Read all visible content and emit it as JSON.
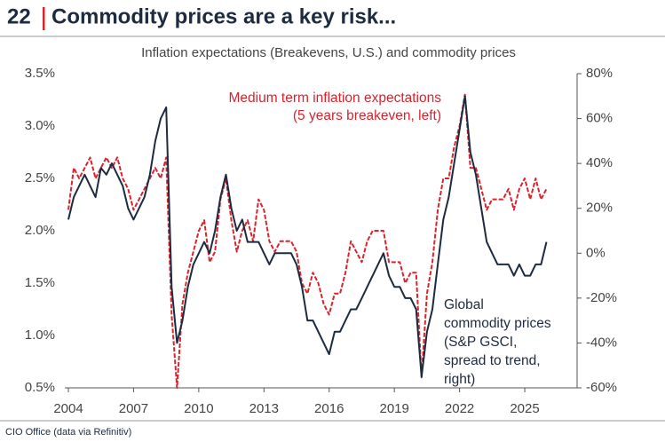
{
  "chart_data": {
    "type": "line",
    "number": "22",
    "title": "Commodity prices are a key risk...",
    "subtitle": "Inflation expectations (Breakevens, U.S.) and commodity prices",
    "source": "CIO Office (data via Refinitiv)",
    "annotations": [
      {
        "lines": [
          "Medium term inflation expectations",
          "(5 years breakeven, left)"
        ],
        "color": "#d9232d"
      },
      {
        "lines": [
          "Global",
          "commodity prices",
          "(S&P GSCI,",
          "spread to trend,",
          "right)"
        ],
        "color": "#1c2b3f"
      }
    ],
    "x": [
      2004,
      2004.25,
      2004.5,
      2004.75,
      2005,
      2005.25,
      2005.5,
      2005.75,
      2006,
      2006.25,
      2006.5,
      2006.75,
      2007,
      2007.25,
      2007.5,
      2007.75,
      2008,
      2008.25,
      2008.5,
      2008.75,
      2009,
      2009.25,
      2009.5,
      2009.75,
      2010,
      2010.25,
      2010.5,
      2010.75,
      2011,
      2011.25,
      2011.5,
      2011.75,
      2012,
      2012.25,
      2012.5,
      2012.75,
      2013,
      2013.25,
      2013.5,
      2013.75,
      2014,
      2014.25,
      2014.5,
      2014.75,
      2015,
      2015.25,
      2015.5,
      2015.75,
      2016,
      2016.25,
      2016.5,
      2016.75,
      2017,
      2017.25,
      2017.5,
      2017.75,
      2018,
      2018.25,
      2018.5,
      2018.75,
      2019,
      2019.25,
      2019.5,
      2019.75,
      2020,
      2020.25,
      2020.5,
      2020.75,
      2021,
      2021.25,
      2021.5,
      2021.75,
      2022,
      2022.25,
      2022.5,
      2022.75,
      2023,
      2023.25,
      2023.5,
      2023.75,
      2024,
      2024.25,
      2024.5,
      2024.75,
      2025,
      2025.25,
      2025.5,
      2025.75,
      2026
    ],
    "series": [
      {
        "color": "#d9232d",
        "axis": "y",
        "dashed": true,
        "values": [
          2.2,
          2.6,
          2.5,
          2.6,
          2.7,
          2.5,
          2.6,
          2.7,
          2.6,
          2.7,
          2.5,
          2.4,
          2.2,
          2.3,
          2.4,
          2.5,
          2.6,
          2.5,
          2.7,
          1.2,
          0.5,
          1.3,
          1.6,
          1.8,
          2.0,
          2.1,
          1.7,
          1.8,
          2.3,
          2.5,
          2.1,
          1.8,
          2.0,
          2.1,
          1.9,
          2.3,
          2.2,
          1.9,
          1.8,
          1.9,
          1.9,
          1.9,
          1.8,
          1.5,
          1.4,
          1.6,
          1.5,
          1.3,
          1.2,
          1.4,
          1.4,
          1.6,
          1.9,
          1.8,
          1.7,
          1.9,
          2.0,
          2.0,
          2.0,
          1.7,
          1.7,
          1.7,
          1.5,
          1.6,
          1.6,
          0.6,
          1.4,
          1.7,
          2.2,
          2.5,
          2.5,
          2.8,
          3.0,
          3.3,
          2.6,
          2.6,
          2.4,
          2.2,
          2.3,
          2.3,
          2.3,
          2.4,
          2.2,
          2.4,
          2.5,
          2.3,
          2.5,
          2.3,
          2.4
        ]
      },
      {
        "color": "#1c2b3f",
        "axis": "y2",
        "dashed": false,
        "values": [
          15,
          25,
          30,
          35,
          30,
          25,
          38,
          35,
          40,
          35,
          30,
          20,
          15,
          20,
          25,
          35,
          50,
          60,
          65,
          -15,
          -40,
          -30,
          -15,
          -5,
          0,
          5,
          0,
          10,
          25,
          35,
          20,
          10,
          15,
          5,
          5,
          5,
          0,
          -5,
          0,
          0,
          0,
          0,
          -5,
          -15,
          -30,
          -30,
          -35,
          -40,
          -45,
          -35,
          -35,
          -30,
          -25,
          -25,
          -20,
          -15,
          -10,
          -5,
          0,
          -10,
          -15,
          -15,
          -20,
          -20,
          -25,
          -55,
          -35,
          -25,
          -5,
          15,
          25,
          40,
          55,
          70,
          45,
          35,
          20,
          5,
          0,
          -5,
          -5,
          -5,
          -10,
          -5,
          -10,
          -10,
          -5,
          -5,
          5
        ]
      }
    ],
    "xlim": [
      2004,
      2027
    ],
    "xticks": [
      2004,
      2007,
      2010,
      2013,
      2016,
      2019,
      2022,
      2025
    ],
    "ylim": [
      0.5,
      3.5
    ],
    "yticks": [
      {
        "value": 0.5,
        "label": "0.5%"
      },
      {
        "value": 1.0,
        "label": "1.0%"
      },
      {
        "value": 1.5,
        "label": "1.5%"
      },
      {
        "value": 2.0,
        "label": "2.0%"
      },
      {
        "value": 2.5,
        "label": "2.5%"
      },
      {
        "value": 3.0,
        "label": "3.0%"
      },
      {
        "value": 3.5,
        "label": "3.5%"
      }
    ],
    "y2lim": [
      -60,
      80
    ],
    "y2ticks": [
      {
        "value": -60,
        "label": "-60%"
      },
      {
        "value": -40,
        "label": "-40%"
      },
      {
        "value": -20,
        "label": "-20%"
      },
      {
        "value": 0,
        "label": "0%"
      },
      {
        "value": 20,
        "label": "20%"
      },
      {
        "value": 40,
        "label": "40%"
      },
      {
        "value": 60,
        "label": "60%"
      },
      {
        "value": 80,
        "label": "80%"
      }
    ]
  }
}
